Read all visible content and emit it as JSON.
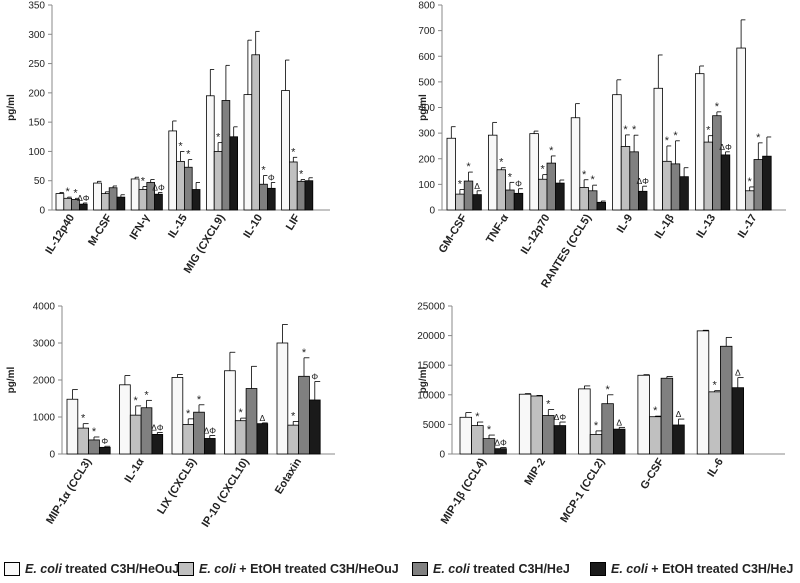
{
  "legend": {
    "items": [
      {
        "italic": "E. coli",
        "rest": " treated C3H/HeOuJ",
        "color": "#f8f8f8"
      },
      {
        "italic": "E. coli",
        "rest": " + EtOH treated C3H/HeOuJ",
        "color": "#c0c0c0"
      },
      {
        "italic": "E. coli",
        "rest": " treated C3H/HeJ",
        "color": "#808080"
      },
      {
        "italic": "E. coli",
        "rest": " + EtOH treated C3H/HeJ",
        "color": "#1a1a1a"
      }
    ]
  },
  "chart_data": [
    {
      "type": "bar",
      "title": "",
      "ylabel": "pg/ml",
      "ylim": [
        0,
        350
      ],
      "yticks": [
        0,
        50,
        100,
        150,
        200,
        250,
        300,
        350
      ],
      "grid": false,
      "series_names": [
        "E. coli treated C3H/HeOuJ",
        "E. coli + EtOH treated C3H/HeOuJ",
        "E. coli treated C3H/HeJ",
        "E. coli + EtOH treated C3H/HeJ"
      ],
      "categories": [
        "IL-12p40",
        "M-CSF",
        "IFN-γ",
        "IL-15",
        "MIG (CXCL9)",
        "IL-10",
        "LIF"
      ],
      "values": [
        [
          28,
          20,
          18,
          10
        ],
        [
          46,
          28,
          38,
          22
        ],
        [
          53,
          35,
          47,
          27
        ],
        [
          135,
          83,
          73,
          35
        ],
        [
          195,
          100,
          187,
          125
        ],
        [
          197,
          265,
          44,
          37
        ],
        [
          204,
          82,
          49,
          50
        ]
      ],
      "errors": [
        [
          2,
          2,
          2,
          2
        ],
        [
          3,
          3,
          3,
          4
        ],
        [
          3,
          5,
          5,
          3
        ],
        [
          17,
          17,
          13,
          12
        ],
        [
          45,
          15,
          60,
          17
        ],
        [
          93,
          40,
          15,
          10
        ],
        [
          52,
          8,
          3,
          5
        ]
      ],
      "annotations": [
        [
          "",
          "*",
          "*",
          "ΔΦ"
        ],
        [
          "",
          "",
          "",
          ""
        ],
        [
          "",
          "*",
          "",
          "ΔΦ"
        ],
        [
          "",
          "*",
          "*",
          ""
        ],
        [
          "",
          "*",
          "",
          ""
        ],
        [
          "",
          "",
          "*",
          "Φ"
        ],
        [
          "",
          "*",
          "*",
          ""
        ]
      ]
    },
    {
      "type": "bar",
      "title": "",
      "ylabel": "pg/ml",
      "ylim": [
        0,
        800
      ],
      "yticks": [
        0,
        100,
        200,
        300,
        400,
        500,
        600,
        700,
        800
      ],
      "grid": false,
      "series_names": [
        "E. coli treated C3H/HeOuJ",
        "E. coli + EtOH treated C3H/HeOuJ",
        "E. coli treated C3H/HeJ",
        "E. coli + EtOH treated C3H/HeJ"
      ],
      "categories": [
        "GM-CSF",
        "TNF-α",
        "IL-12p70",
        "RANTES (CCL5)",
        "IL-9",
        "IL-1β",
        "IL-13",
        "IL-17"
      ],
      "values": [
        [
          280,
          62,
          113,
          60
        ],
        [
          292,
          157,
          78,
          65
        ],
        [
          298,
          120,
          183,
          105
        ],
        [
          360,
          88,
          75,
          30
        ],
        [
          450,
          248,
          227,
          73
        ],
        [
          475,
          190,
          180,
          130
        ],
        [
          532,
          265,
          368,
          215
        ],
        [
          632,
          75,
          197,
          210
        ]
      ],
      "errors": [
        [
          45,
          18,
          35,
          15
        ],
        [
          50,
          8,
          30,
          18
        ],
        [
          10,
          18,
          28,
          12
        ],
        [
          55,
          30,
          22,
          5
        ],
        [
          58,
          45,
          65,
          20
        ],
        [
          130,
          60,
          90,
          35
        ],
        [
          30,
          25,
          15,
          12
        ],
        [
          110,
          15,
          65,
          75
        ]
      ],
      "annotations": [
        [
          "",
          "*",
          "*",
          "Δ"
        ],
        [
          "",
          "*",
          "*",
          "Φ"
        ],
        [
          "",
          "*",
          "*",
          ""
        ],
        [
          "",
          "*",
          "*",
          ""
        ],
        [
          "",
          "*",
          "*",
          "ΔΦ"
        ],
        [
          "",
          "*",
          "*",
          ""
        ],
        [
          "",
          "*",
          "*",
          "ΔΦ"
        ],
        [
          "",
          "*",
          "*",
          ""
        ]
      ]
    },
    {
      "type": "bar",
      "title": "",
      "ylabel": "pg/ml",
      "ylim": [
        0,
        4000
      ],
      "yticks": [
        0,
        1000,
        2000,
        3000,
        4000
      ],
      "grid": false,
      "series_names": [
        "E. coli treated C3H/HeOuJ",
        "E. coli + EtOH treated C3H/HeOuJ",
        "E. coli treated C3H/HeJ",
        "E. coli + EtOH treated C3H/HeJ"
      ],
      "categories": [
        "MIP-1α (CCL3)",
        "IL-1α",
        "LIX (CXCL5)",
        "IP-10 (CXCL10)",
        "Eotaxin"
      ],
      "values": [
        [
          1480,
          700,
          380,
          180
        ],
        [
          1870,
          1050,
          1250,
          530
        ],
        [
          2070,
          800,
          1130,
          420
        ],
        [
          2250,
          900,
          1770,
          820
        ],
        [
          3000,
          780,
          2100,
          1460
        ]
      ],
      "errors": [
        [
          260,
          120,
          80,
          30
        ],
        [
          250,
          250,
          200,
          50
        ],
        [
          80,
          150,
          200,
          80
        ],
        [
          500,
          70,
          600,
          20
        ],
        [
          500,
          100,
          500,
          500
        ]
      ],
      "annotations": [
        [
          "",
          "*",
          "*",
          "Φ"
        ],
        [
          "",
          "*",
          "*",
          "ΔΦ"
        ],
        [
          "",
          "*",
          "*",
          "ΔΦ"
        ],
        [
          "",
          "*",
          "",
          "Δ"
        ],
        [
          "",
          "*",
          "*",
          "Φ"
        ]
      ]
    },
    {
      "type": "bar",
      "title": "",
      "ylabel": "pg/ml",
      "ylim": [
        0,
        25000
      ],
      "yticks": [
        0,
        5000,
        10000,
        15000,
        20000,
        25000
      ],
      "grid": false,
      "series_names": [
        "E. coli treated C3H/HeOuJ",
        "E. coli + EtOH treated C3H/HeOuJ",
        "E. coli treated C3H/HeJ",
        "E. coli + EtOH treated C3H/HeJ"
      ],
      "categories": [
        "MIP-1β (CCL4)",
        "MIP-2",
        "MCP-1 (CCL2)",
        "G-CSF",
        "IL-6"
      ],
      "values": [
        [
          6200,
          4800,
          2600,
          900
        ],
        [
          10100,
          9800,
          6500,
          4800
        ],
        [
          11000,
          3300,
          8500,
          4200
        ],
        [
          13300,
          6300,
          12800,
          4900
        ],
        [
          20800,
          10500,
          18200,
          11200
        ]
      ],
      "errors": [
        [
          800,
          600,
          600,
          200
        ],
        [
          100,
          100,
          1000,
          600
        ],
        [
          500,
          600,
          1500,
          300
        ],
        [
          100,
          100,
          300,
          1000
        ],
        [
          100,
          200,
          1500,
          1700
        ]
      ],
      "annotations": [
        [
          "",
          "*",
          "*",
          "ΔΦ"
        ],
        [
          "",
          "",
          "*",
          "ΔΦ"
        ],
        [
          "",
          "*",
          "*",
          "Δ"
        ],
        [
          "",
          "*",
          "",
          "Δ"
        ],
        [
          "",
          "*",
          "",
          "Δ"
        ]
      ]
    }
  ]
}
